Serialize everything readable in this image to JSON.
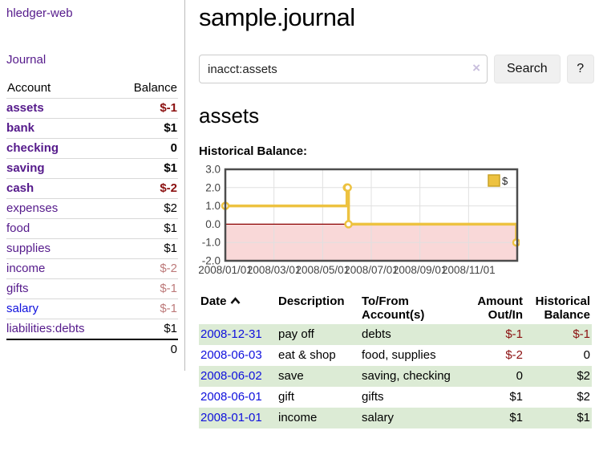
{
  "app": {
    "brand": "hledger-web",
    "nav_journal": "Journal"
  },
  "sidebar": {
    "headers": {
      "account": "Account",
      "balance": "Balance"
    },
    "accounts": [
      {
        "name": "assets",
        "balance": "$-1",
        "indent": 1,
        "bold": true,
        "link": "purple",
        "balance_class": "neg-strong"
      },
      {
        "name": "bank",
        "balance": "$1",
        "indent": 2,
        "bold": true,
        "link": "purple",
        "balance_class": ""
      },
      {
        "name": "checking",
        "balance": "0",
        "indent": 3,
        "bold": true,
        "link": "purple",
        "balance_class": ""
      },
      {
        "name": "saving",
        "balance": "$1",
        "indent": 3,
        "bold": true,
        "link": "purple",
        "balance_class": ""
      },
      {
        "name": "cash",
        "balance": "$-2",
        "indent": 2,
        "bold": true,
        "link": "purple",
        "balance_class": "neg-strong"
      },
      {
        "name": "expenses",
        "balance": "$2",
        "indent": 1,
        "bold": false,
        "link": "purple",
        "balance_class": ""
      },
      {
        "name": "food",
        "balance": "$1",
        "indent": 2,
        "bold": false,
        "link": "purple",
        "balance_class": ""
      },
      {
        "name": "supplies",
        "balance": "$1",
        "indent": 2,
        "bold": false,
        "link": "purple",
        "balance_class": ""
      },
      {
        "name": "income",
        "balance": "$-2",
        "indent": 1,
        "bold": false,
        "link": "purple",
        "balance_class": "neg-soft"
      },
      {
        "name": "gifts",
        "balance": "$-1",
        "indent": 2,
        "bold": false,
        "link": "purple",
        "balance_class": "neg-soft"
      },
      {
        "name": "salary",
        "balance": "$-1",
        "indent": 2,
        "bold": false,
        "link": "blue",
        "balance_class": "neg-soft"
      },
      {
        "name": "liabilities:debts",
        "balance": "$1",
        "indent": 1,
        "bold": false,
        "link": "purple",
        "balance_class": ""
      }
    ],
    "total": "0"
  },
  "header": {
    "title": "sample.journal"
  },
  "search": {
    "value": "inacct:assets",
    "clear_icon": "×",
    "button_label": "Search",
    "help_label": "?"
  },
  "main": {
    "account_heading": "assets",
    "chart_label": "Historical Balance:"
  },
  "chart_data": {
    "type": "line",
    "title": "Historical Balance",
    "series": [
      {
        "name": "$",
        "steps": true,
        "points": [
          {
            "date": "2008-01-01",
            "value": 1
          },
          {
            "date": "2008-06-01",
            "value": 2
          },
          {
            "date": "2008-06-02",
            "value": 2
          },
          {
            "date": "2008-06-03",
            "value": 0
          },
          {
            "date": "2008-12-31",
            "value": -1
          }
        ]
      }
    ],
    "x_ticks": [
      "2008/01/01",
      "2008/03/01",
      "2008/05/01",
      "2008/07/01",
      "2008/09/01",
      "2008/11/01"
    ],
    "x_range": [
      "2008-01-01",
      "2009-01-01"
    ],
    "y_ticks": [
      "3.0",
      "2.0",
      "1.0",
      "0.0",
      "-1.0",
      "-2.0"
    ],
    "ylim": [
      -2,
      3
    ],
    "grid": true,
    "legend_position": "top-right",
    "legend_label": "$",
    "negative_region_shaded": true,
    "zero_line": true
  },
  "register": {
    "columns": [
      {
        "label": "Date",
        "sorted": "asc",
        "align": "left"
      },
      {
        "label": "Description",
        "align": "left"
      },
      {
        "label": "To/From Account(s)",
        "align": "left"
      },
      {
        "label": "Amount Out/In",
        "align": "right"
      },
      {
        "label": "Historical Balance",
        "align": "right"
      }
    ],
    "rows": [
      {
        "date": "2008-12-31",
        "description": "pay off",
        "accounts": "debts",
        "amount": "$-1",
        "balance": "$-1"
      },
      {
        "date": "2008-06-03",
        "description": "eat & shop",
        "accounts": "food, supplies",
        "amount": "$-2",
        "balance": "0"
      },
      {
        "date": "2008-06-02",
        "description": "save",
        "accounts": "saving, checking",
        "amount": "0",
        "balance": "$2"
      },
      {
        "date": "2008-06-01",
        "description": "gift",
        "accounts": "gifts",
        "amount": "$1",
        "balance": "$2"
      },
      {
        "date": "2008-01-01",
        "description": "income",
        "accounts": "salary",
        "amount": "$1",
        "balance": "$1"
      }
    ]
  },
  "colors": {
    "link_purple": "#551a8b",
    "link_blue": "#0f10dd",
    "negative_strong": "#8b1010",
    "negative_soft": "#bd7a7a",
    "row_stripe": "#dcebd5",
    "series_yellow": "#edc240",
    "series_yellow_border": "#c9a227",
    "zero_line": "#8b0000",
    "negative_region": "#f9d8d8",
    "chart_border": "#4d4d4d"
  }
}
